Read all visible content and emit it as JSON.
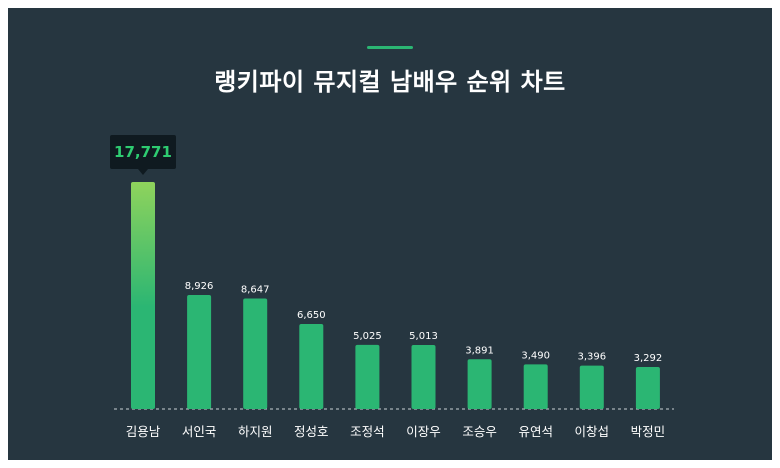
{
  "chart_data": {
    "type": "bar",
    "title": "랭키파이 뮤지컬 남배우 순위 차트",
    "categories": [
      "김용남",
      "서인국",
      "하지원",
      "정성호",
      "조정석",
      "이장우",
      "조승우",
      "유연석",
      "이창섭",
      "박정민"
    ],
    "values": [
      17771,
      8926,
      8647,
      6650,
      5025,
      5013,
      3891,
      3490,
      3396,
      3292
    ],
    "value_labels": [
      "17,771",
      "8,926",
      "8,647",
      "6,650",
      "5,025",
      "5,013",
      "3,891",
      "3,490",
      "3,396",
      "3,292"
    ],
    "highlight_index": 0,
    "ylim": [
      0,
      17771
    ],
    "grid": false,
    "legend": "none"
  },
  "colors": {
    "background": "#263640",
    "bar": "#2bb673",
    "bar_top_highlight": "#8fd35c",
    "tooltip_bg": "#0f1a20",
    "tooltip_text": "#2ecc71",
    "accent": "#2bb673"
  }
}
